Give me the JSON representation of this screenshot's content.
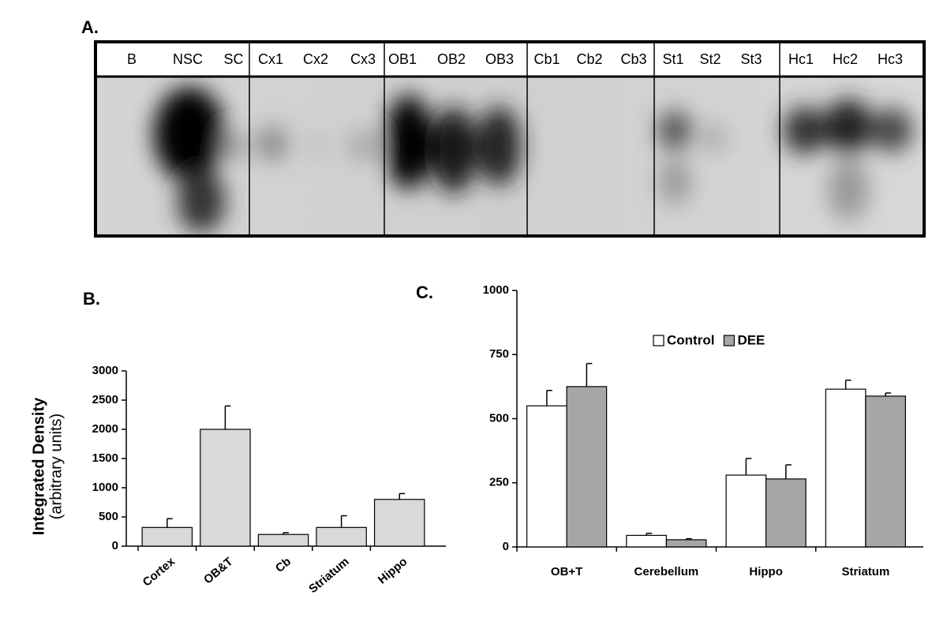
{
  "panel_labels": [
    "A.",
    "B.",
    "C."
  ],
  "blot": {
    "lanes": [
      "B",
      "NSC",
      "SC",
      "Cx1",
      "Cx2",
      "Cx3",
      "OB1",
      "OB2",
      "OB3",
      "Cb1",
      "Cb2",
      "Cb3",
      "St1",
      "St2",
      "St3",
      "Hc1",
      "Hc2",
      "Hc3"
    ]
  },
  "chart_data": [
    {
      "type": "bar",
      "y_label_lines": [
        "Integrated Density",
        "(arbitrary units)"
      ],
      "categories": [
        "Cortex",
        "OB&T",
        "Cb",
        "Striatum",
        "Hippo"
      ],
      "series": [
        {
          "color": "#d9d9d9",
          "values": [
            320,
            2000,
            200,
            320,
            800
          ],
          "errors": [
            150,
            400,
            30,
            200,
            100
          ]
        }
      ],
      "ylim": [
        0,
        3000
      ],
      "yticks": [
        0,
        500,
        1000,
        1500,
        2000,
        2500,
        3000
      ]
    },
    {
      "type": "bar",
      "categories": [
        "OB+T",
        "Cerebellum",
        "Hippo",
        "Striatum"
      ],
      "series": [
        {
          "name": "Control",
          "color": "#ffffff",
          "values": [
            550,
            45,
            280,
            615
          ],
          "errors": [
            60,
            8,
            65,
            35
          ]
        },
        {
          "name": "DEE",
          "color": "#a6a6a6",
          "values": [
            625,
            28,
            265,
            588
          ],
          "errors": [
            90,
            4,
            55,
            12
          ]
        }
      ],
      "ylim": [
        0,
        1000
      ],
      "yticks": [
        0,
        250,
        500,
        750,
        1000
      ]
    }
  ]
}
